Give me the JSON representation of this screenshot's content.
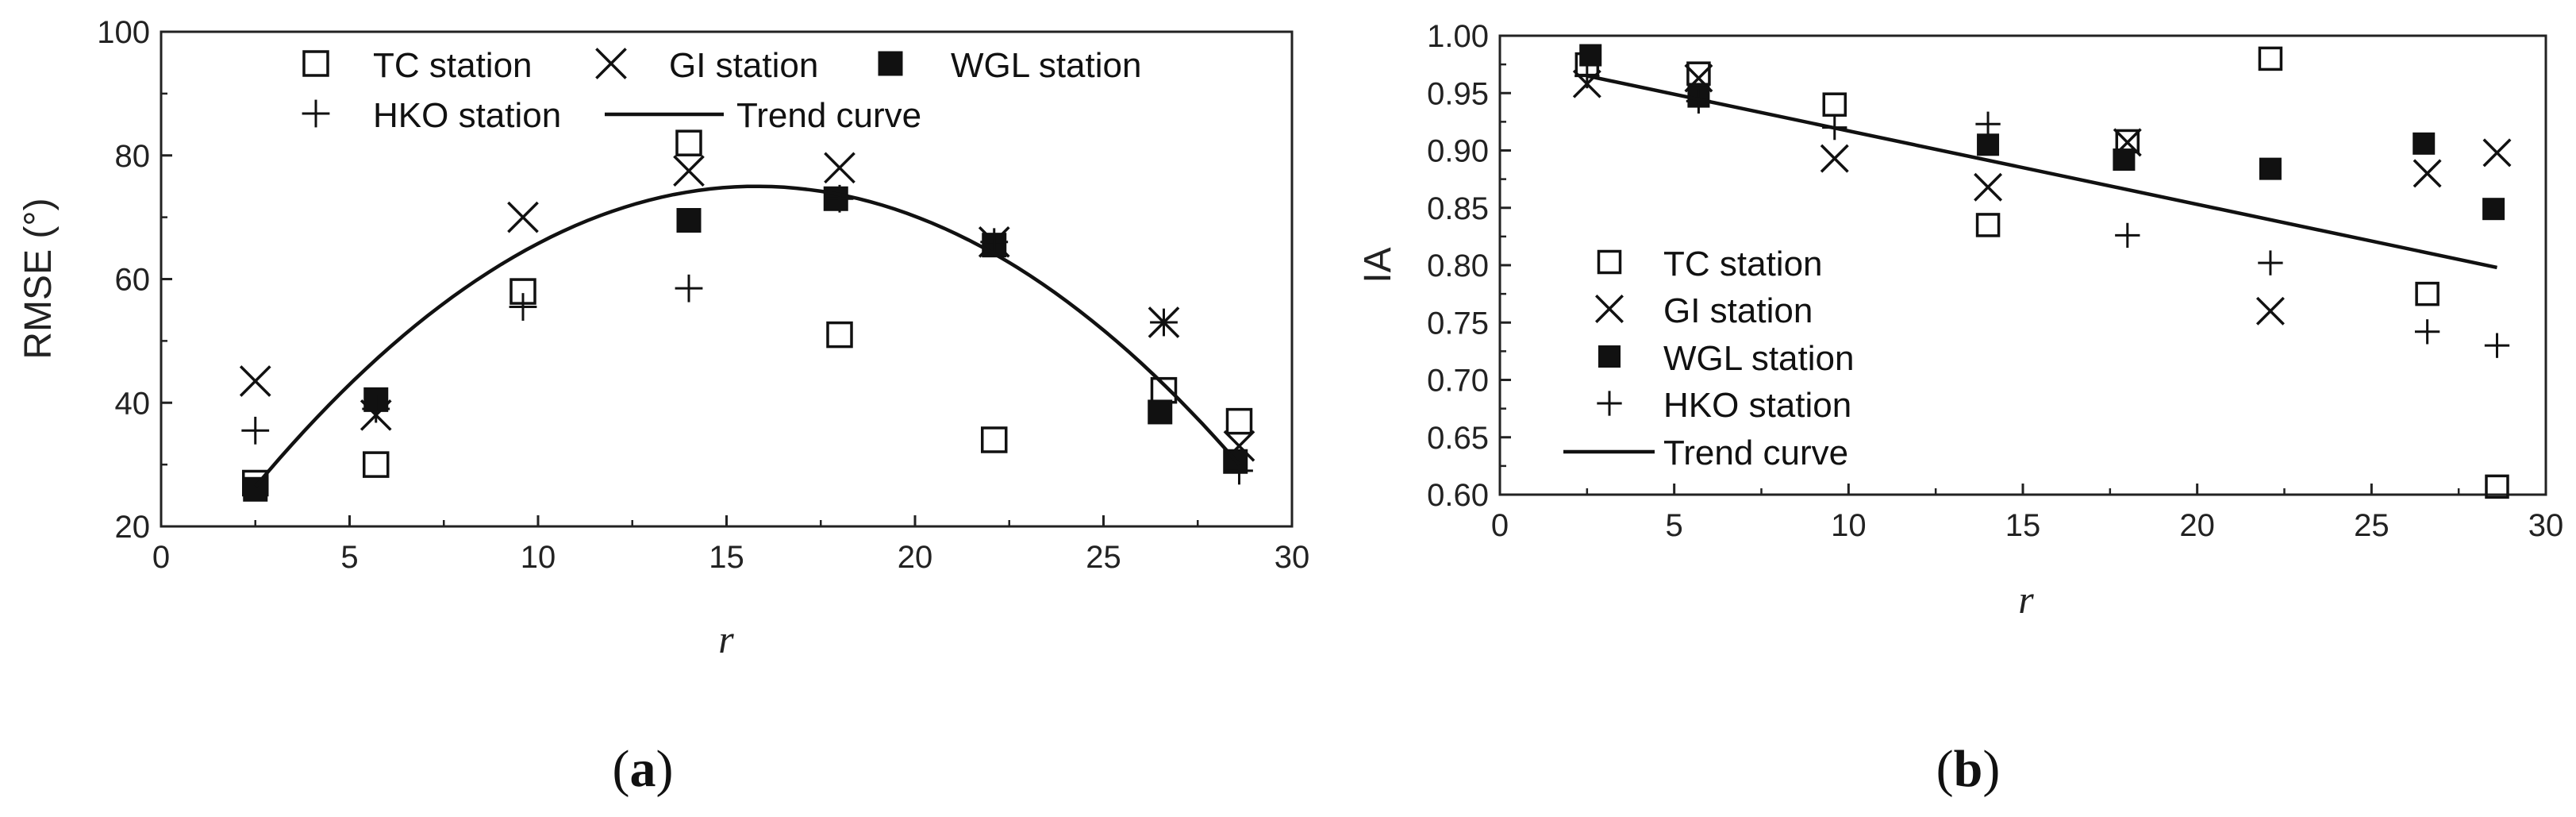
{
  "chart_data": [
    {
      "type": "scatter",
      "panel": "a",
      "caption_open": "(",
      "caption_letter": "a",
      "caption_close": ")",
      "xlabel": "r",
      "ylabel": "RMSE (°)",
      "xlim": [
        0,
        30
      ],
      "ylim": [
        20,
        100
      ],
      "xticks": [
        0,
        5,
        10,
        15,
        20,
        25,
        30
      ],
      "yticks": [
        20,
        40,
        60,
        80,
        100
      ],
      "ytick_labels": [
        "20",
        "40",
        "60",
        "80",
        "100"
      ],
      "series": [
        {
          "name": "TC station",
          "marker": "open-square",
          "x": [
            2.5,
            5.7,
            9.6,
            14.0,
            18.0,
            22.1,
            26.6,
            28.6
          ],
          "y": [
            27,
            30,
            58,
            82,
            51,
            34,
            42,
            37
          ]
        },
        {
          "name": "GI station",
          "marker": "x",
          "x": [
            2.5,
            5.7,
            9.6,
            14.0,
            18.0,
            22.1,
            26.6,
            28.6
          ],
          "y": [
            43.5,
            38,
            70,
            77.5,
            78,
            66,
            53,
            33
          ]
        },
        {
          "name": "WGL station",
          "marker": "filled-square",
          "x": [
            2.5,
            5.7,
            14.0,
            17.9,
            22.1,
            26.5,
            28.5
          ],
          "y": [
            26,
            40.5,
            69.5,
            73,
            65.5,
            38.5,
            30.5
          ]
        },
        {
          "name": "HKO station",
          "marker": "plus",
          "x": [
            2.5,
            5.7,
            9.6,
            14.0,
            18.0,
            22.1,
            26.6,
            28.6
          ],
          "y": [
            35.5,
            39,
            55.5,
            58.5,
            73,
            66,
            53,
            29
          ]
        }
      ],
      "trend": {
        "name": "Trend curve",
        "vertex_x": 15.8,
        "vertex_y": 75,
        "a": -0.2747
      },
      "legend": {
        "placement": "top",
        "items": [
          "TC station",
          "GI station",
          "WGL station",
          "HKO station",
          "Trend curve"
        ]
      }
    },
    {
      "type": "scatter",
      "panel": "b",
      "caption_open": "(",
      "caption_letter": "b",
      "caption_close": ")",
      "xlabel": "r",
      "ylabel": "IA",
      "xlim": [
        0,
        30
      ],
      "ylim": [
        0.6,
        1.0
      ],
      "xticks": [
        0,
        5,
        10,
        15,
        20,
        25,
        30
      ],
      "yticks": [
        0.6,
        0.65,
        0.7,
        0.75,
        0.8,
        0.85,
        0.9,
        0.95,
        1.0
      ],
      "ytick_labels": [
        "0.60",
        "0.65",
        "0.70",
        "0.75",
        "0.80",
        "0.85",
        "0.90",
        "0.95",
        "1.00"
      ],
      "series": [
        {
          "name": "TC station",
          "marker": "open-square",
          "x": [
            2.5,
            5.7,
            9.6,
            14.0,
            18.0,
            22.1,
            26.6,
            28.6
          ],
          "y": [
            0.975,
            0.967,
            0.94,
            0.835,
            0.908,
            0.98,
            0.775,
            0.607
          ]
        },
        {
          "name": "GI station",
          "marker": "x",
          "x": [
            2.5,
            5.7,
            9.6,
            14.0,
            18.0,
            22.1,
            26.6,
            28.6
          ],
          "y": [
            0.958,
            0.963,
            0.893,
            0.868,
            0.907,
            0.76,
            0.88,
            0.898
          ]
        },
        {
          "name": "WGL station",
          "marker": "filled-square",
          "x": [
            2.6,
            5.7,
            14.0,
            17.9,
            22.1,
            26.5,
            28.5
          ],
          "y": [
            0.983,
            0.947,
            0.905,
            0.892,
            0.884,
            0.906,
            0.849
          ]
        },
        {
          "name": "HKO station",
          "marker": "plus",
          "x": [
            2.5,
            5.7,
            9.6,
            14.0,
            18.0,
            22.1,
            26.6,
            28.6
          ],
          "y": [
            0.965,
            0.943,
            0.92,
            0.923,
            0.826,
            0.802,
            0.742,
            0.73
          ]
        }
      ],
      "trend": {
        "name": "Trend curve",
        "x": [
          2.5,
          28.6
        ],
        "y": [
          0.965,
          0.798
        ]
      },
      "legend": {
        "placement": "middle-left",
        "items": [
          "TC station",
          "GI station",
          "WGL station",
          "HKO station",
          "Trend curve"
        ]
      }
    }
  ]
}
